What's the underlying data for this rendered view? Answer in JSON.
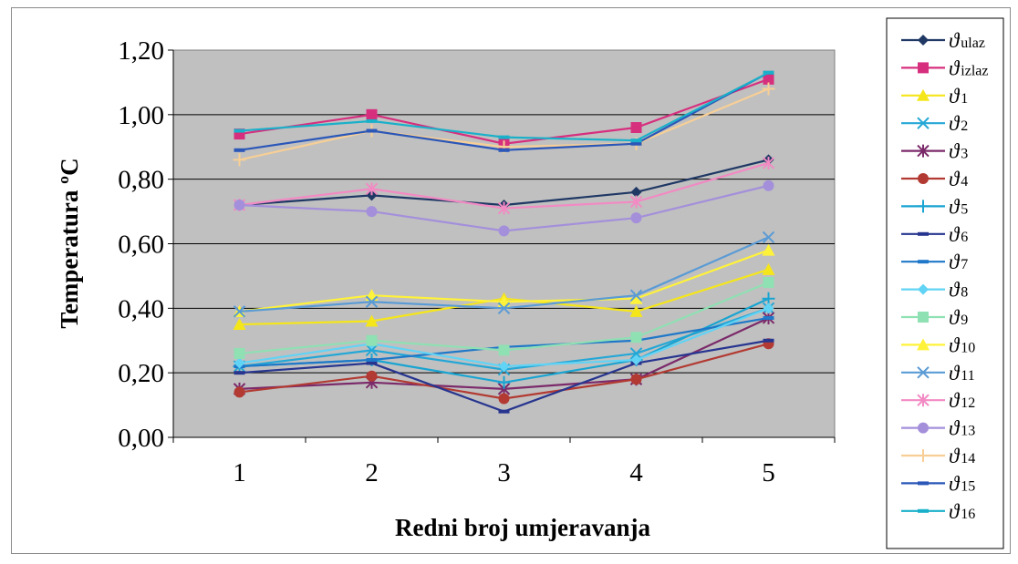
{
  "chart_data": {
    "type": "line",
    "title": "",
    "xlabel": "Redni broj umjeravanja",
    "ylabel": "Temperatura ºC",
    "categories": [
      "1",
      "2",
      "3",
      "4",
      "5"
    ],
    "ylim": [
      0,
      1.2
    ],
    "yticks": [
      "0,00",
      "0,20",
      "0,40",
      "0,60",
      "0,80",
      "1,00",
      "1,20"
    ],
    "grid": "horizontal",
    "plot_background": "#c0c0c0",
    "legend_position": "right",
    "series": [
      {
        "name": "ϑ ulaz",
        "symbol": "ϑ",
        "sub": "ulaz",
        "color": "#1f3864",
        "marker": "diamond",
        "values": [
          0.72,
          0.75,
          0.72,
          0.76,
          0.86
        ]
      },
      {
        "name": "ϑ izlaz",
        "symbol": "ϑ",
        "sub": "izlaz",
        "color": "#d62f7e",
        "marker": "square",
        "values": [
          0.94,
          1.0,
          0.91,
          0.96,
          1.11
        ]
      },
      {
        "name": "ϑ 1",
        "symbol": "ϑ",
        "sub": "1",
        "color": "#f5e61a",
        "marker": "triangle",
        "values": [
          0.35,
          0.36,
          0.43,
          0.39,
          0.52
        ]
      },
      {
        "name": "ϑ 2",
        "symbol": "ϑ",
        "sub": "2",
        "color": "#24a7d6",
        "marker": "x",
        "values": [
          0.22,
          0.27,
          0.21,
          0.26,
          0.4
        ]
      },
      {
        "name": "ϑ 3",
        "symbol": "ϑ",
        "sub": "3",
        "color": "#7b2a6a",
        "marker": "star",
        "values": [
          0.15,
          0.17,
          0.15,
          0.18,
          0.37
        ]
      },
      {
        "name": "ϑ 4",
        "symbol": "ϑ",
        "sub": "4",
        "color": "#b23a32",
        "marker": "circle",
        "values": [
          0.14,
          0.19,
          0.12,
          0.18,
          0.29
        ]
      },
      {
        "name": "ϑ 5",
        "symbol": "ϑ",
        "sub": "5",
        "color": "#19a4d1",
        "marker": "plus",
        "values": [
          0.22,
          0.24,
          0.17,
          0.24,
          0.43
        ]
      },
      {
        "name": "ϑ 6",
        "symbol": "ϑ",
        "sub": "6",
        "color": "#27358f",
        "marker": "dash",
        "values": [
          0.2,
          0.23,
          0.08,
          0.23,
          0.3
        ]
      },
      {
        "name": "ϑ 7",
        "symbol": "ϑ",
        "sub": "7",
        "color": "#1f78c8",
        "marker": "dash",
        "values": [
          0.22,
          0.24,
          0.28,
          0.3,
          0.37
        ]
      },
      {
        "name": "ϑ 8",
        "symbol": "ϑ",
        "sub": "8",
        "color": "#61d3f5",
        "marker": "diamond",
        "values": [
          0.23,
          0.29,
          0.22,
          0.24,
          0.4
        ]
      },
      {
        "name": "ϑ 9",
        "symbol": "ϑ",
        "sub": "9",
        "color": "#8fe0b3",
        "marker": "square",
        "values": [
          0.26,
          0.3,
          0.27,
          0.31,
          0.48
        ]
      },
      {
        "name": "ϑ 10",
        "symbol": "ϑ",
        "sub": "10",
        "color": "#fff23a",
        "marker": "triangle",
        "values": [
          0.39,
          0.44,
          0.42,
          0.43,
          0.58
        ]
      },
      {
        "name": "ϑ 11",
        "symbol": "ϑ",
        "sub": "11",
        "color": "#5a9bd5",
        "marker": "x",
        "values": [
          0.39,
          0.42,
          0.4,
          0.44,
          0.62
        ]
      },
      {
        "name": "ϑ 12",
        "symbol": "ϑ",
        "sub": "12",
        "color": "#f28ac3",
        "marker": "star",
        "values": [
          0.72,
          0.77,
          0.71,
          0.73,
          0.85
        ]
      },
      {
        "name": "ϑ 13",
        "symbol": "ϑ",
        "sub": "13",
        "color": "#a48fdb",
        "marker": "circle",
        "values": [
          0.72,
          0.7,
          0.64,
          0.68,
          0.78
        ]
      },
      {
        "name": "ϑ 14",
        "symbol": "ϑ",
        "sub": "14",
        "color": "#f7cf96",
        "marker": "plus",
        "values": [
          0.86,
          0.95,
          0.9,
          0.91,
          1.08
        ]
      },
      {
        "name": "ϑ 15",
        "symbol": "ϑ",
        "sub": "15",
        "color": "#2b57b8",
        "marker": "dash",
        "values": [
          0.89,
          0.95,
          0.89,
          0.91,
          1.13
        ]
      },
      {
        "name": "ϑ 16",
        "symbol": "ϑ",
        "sub": "16",
        "color": "#1ab0c9",
        "marker": "dash",
        "values": [
          0.95,
          0.98,
          0.93,
          0.92,
          1.13
        ]
      }
    ]
  }
}
